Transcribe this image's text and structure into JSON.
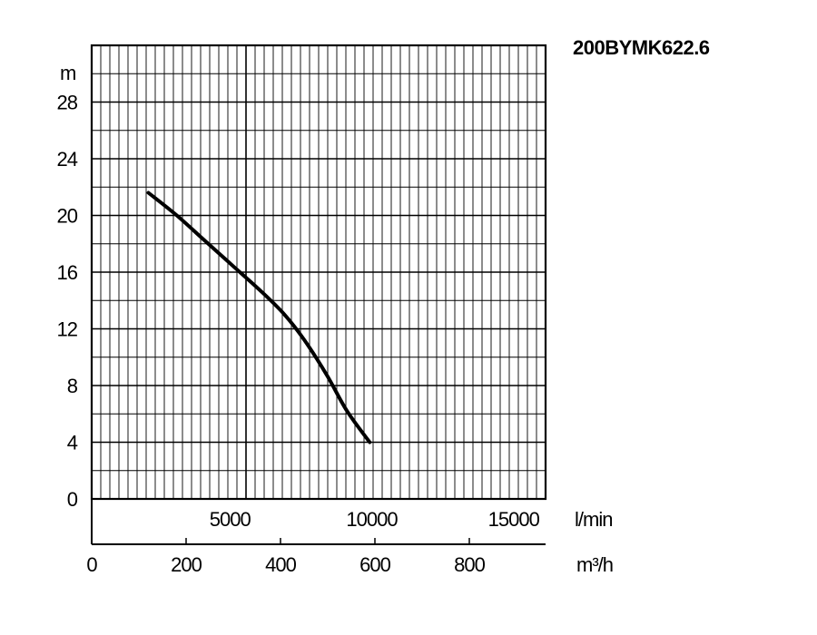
{
  "chart_data": {
    "type": "line",
    "title": "200BYMK622.6",
    "ylabel": "m",
    "xlabel_primary": "l/min",
    "xlabel_secondary": "m³/h",
    "ylim": [
      0,
      32
    ],
    "xlim_lmin": [
      0,
      16000
    ],
    "yticks": [
      "0",
      "4",
      "8",
      "12",
      "16",
      "20",
      "24",
      "28"
    ],
    "xticks_lmin": [
      "5000",
      "10000",
      "15000"
    ],
    "xticks_m3h": [
      "0",
      "200",
      "400",
      "600",
      "800"
    ],
    "grid": true,
    "series": [
      {
        "x_unit": "l/min",
        "points": [
          [
            2000,
            21.6
          ],
          [
            3000,
            20.0
          ],
          [
            4000,
            18.2
          ],
          [
            5000,
            16.4
          ],
          [
            6000,
            14.6
          ],
          [
            6800,
            13.0
          ],
          [
            7500,
            11.2
          ],
          [
            8300,
            8.7
          ],
          [
            9000,
            6.2
          ],
          [
            9800,
            4.0
          ]
        ]
      }
    ]
  }
}
